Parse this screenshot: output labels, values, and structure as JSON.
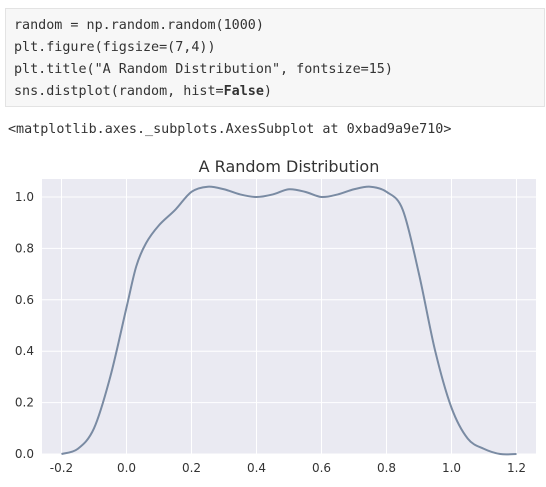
{
  "code": {
    "line1": "random = np.random.random(1000)",
    "line2": "plt.figure(figsize=(7,4))",
    "line3": "plt.title(\"A Random Distribution\", fontsize=15)",
    "line4_pre": "sns.distplot(random, hist=",
    "line4_kw": "False",
    "line4_post": ")"
  },
  "output_text": "<matplotlib.axes._subplots.AxesSubplot at 0xbad9a9e710>",
  "chart_data": {
    "type": "line",
    "title": "A Random Distribution",
    "xlabel": "",
    "ylabel": "",
    "xlim": [
      -0.26,
      1.26
    ],
    "ylim": [
      0,
      1.07
    ],
    "xticks": [
      -0.2,
      0.0,
      0.2,
      0.4,
      0.6,
      0.8,
      1.0,
      1.2
    ],
    "yticks": [
      0.0,
      0.2,
      0.4,
      0.6,
      0.8,
      1.0
    ],
    "grid": true,
    "series": [
      {
        "color": "#7a8ba3",
        "x": [
          -0.2,
          -0.15,
          -0.1,
          -0.05,
          0.0,
          0.03,
          0.06,
          0.1,
          0.15,
          0.2,
          0.25,
          0.3,
          0.35,
          0.4,
          0.45,
          0.5,
          0.55,
          0.6,
          0.65,
          0.7,
          0.75,
          0.8,
          0.85,
          0.9,
          0.95,
          1.0,
          1.05,
          1.1,
          1.15,
          1.2
        ],
        "y": [
          0.0,
          0.02,
          0.1,
          0.3,
          0.57,
          0.73,
          0.82,
          0.89,
          0.95,
          1.02,
          1.04,
          1.03,
          1.01,
          1.0,
          1.01,
          1.03,
          1.02,
          1.0,
          1.01,
          1.03,
          1.04,
          1.02,
          0.95,
          0.7,
          0.4,
          0.18,
          0.06,
          0.02,
          0.0,
          0.0
        ]
      }
    ]
  }
}
